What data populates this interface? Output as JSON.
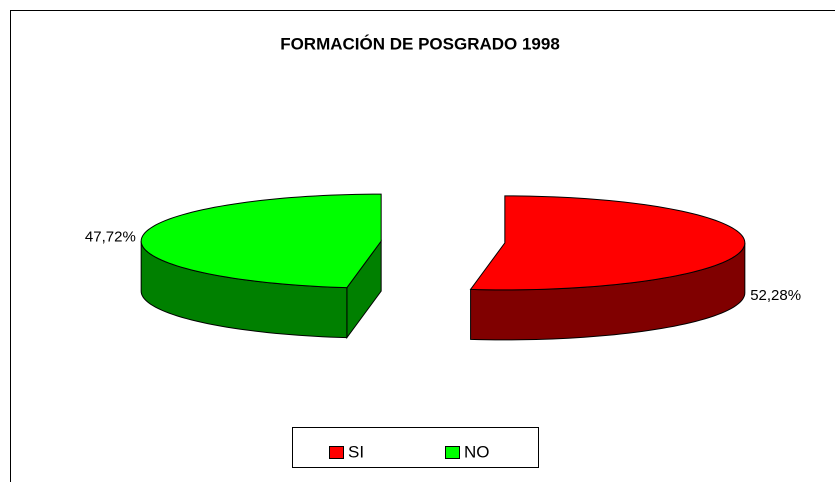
{
  "chart_data": {
    "type": "pie3d",
    "title": "FORMACIÓN DE POSGRADO 1998",
    "categories": [
      "SI",
      "NO"
    ],
    "values": [
      52.28,
      47.72
    ],
    "value_labels": [
      "52,28%",
      "47,72%"
    ],
    "colors": [
      "#ff0000",
      "#00ff00"
    ],
    "side_colors": [
      "#800000",
      "#008000"
    ],
    "legend": "bottom"
  }
}
